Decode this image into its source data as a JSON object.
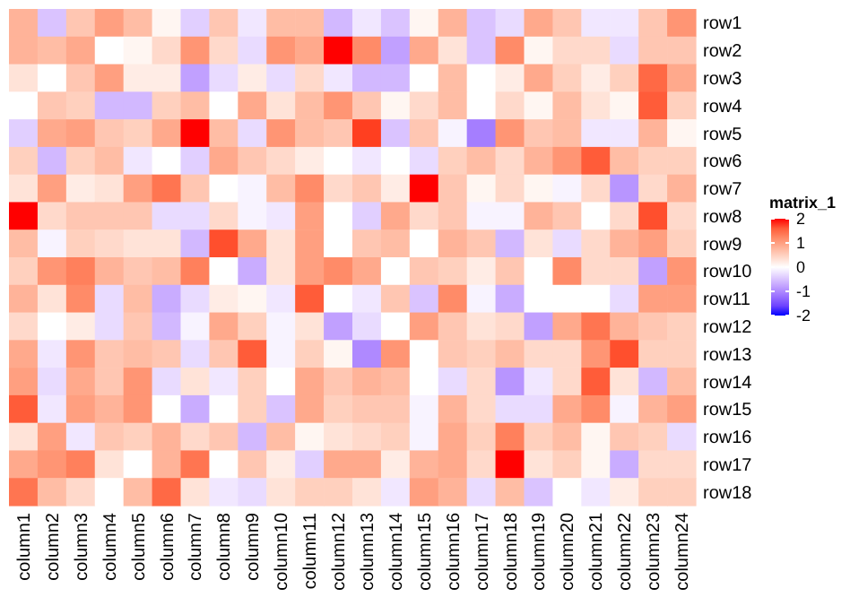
{
  "chart_data": {
    "type": "heatmap",
    "clabel": "matrix_1",
    "clim": [
      -2,
      2
    ],
    "cticks": [
      -2,
      -1,
      0,
      1,
      2
    ],
    "colors": [
      "#0000ff",
      "#ffffff",
      "#ff0000"
    ],
    "categories": [
      "column1",
      "column2",
      "column3",
      "column4",
      "column5",
      "column6",
      "column7",
      "column8",
      "column9",
      "column10",
      "column11",
      "column12",
      "column13",
      "column14",
      "column15",
      "column16",
      "column17",
      "column18",
      "column19",
      "column20",
      "column21",
      "column22",
      "column23",
      "column24"
    ],
    "y_categories": [
      "row1",
      "row2",
      "row3",
      "row4",
      "row5",
      "row6",
      "row7",
      "row8",
      "row9",
      "row10",
      "row11",
      "row12",
      "row13",
      "row14",
      "row15",
      "row16",
      "row17",
      "row18"
    ],
    "cells": [
      [
        0.8,
        -0.5,
        0.6,
        1.0,
        0.7,
        0.1,
        -0.4,
        0.6,
        -0.2,
        0.7,
        0.7,
        -0.6,
        -0.2,
        -0.5,
        0.1,
        0.8,
        -0.5,
        -0.3,
        0.9,
        0.6,
        -0.2,
        -0.2,
        0.6,
        1.1
      ],
      [
        0.8,
        0.7,
        0.9,
        0.0,
        0.1,
        0.4,
        1.1,
        0.4,
        -0.3,
        1.1,
        0.9,
        2.0,
        1.2,
        -0.8,
        0.9,
        0.3,
        -0.5,
        1.2,
        0.1,
        0.4,
        0.4,
        -0.3,
        0.6,
        0.6
      ],
      [
        0.3,
        0.0,
        0.6,
        1.0,
        0.2,
        0.2,
        -0.8,
        -0.3,
        0.2,
        -0.3,
        0.4,
        -0.2,
        -0.6,
        -0.6,
        0.0,
        0.7,
        0.0,
        0.2,
        0.9,
        0.5,
        0.2,
        0.5,
        1.5,
        0.9
      ],
      [
        0.0,
        0.6,
        0.5,
        -0.6,
        -0.6,
        0.5,
        0.7,
        0.0,
        0.9,
        0.3,
        0.7,
        1.1,
        0.6,
        0.1,
        0.4,
        0.7,
        0.0,
        0.4,
        0.1,
        0.7,
        0.3,
        0.1,
        1.6,
        0.5
      ],
      [
        -0.4,
        0.9,
        1.0,
        0.6,
        0.5,
        0.9,
        2.0,
        0.7,
        -0.3,
        1.1,
        0.7,
        0.6,
        1.8,
        -0.5,
        0.6,
        -0.1,
        -1.1,
        1.1,
        0.6,
        0.7,
        -0.2,
        -0.2,
        0.8,
        0.1
      ],
      [
        0.5,
        -0.6,
        0.5,
        0.7,
        -0.2,
        0.0,
        -0.4,
        0.9,
        0.6,
        0.4,
        0.2,
        0.0,
        -0.2,
        0.0,
        -0.3,
        0.5,
        0.7,
        0.4,
        0.8,
        1.1,
        1.6,
        0.7,
        0.5,
        0.5
      ],
      [
        0.3,
        1.0,
        0.2,
        0.3,
        1.0,
        1.4,
        0.6,
        0.0,
        -0.1,
        0.7,
        1.2,
        0.4,
        0.6,
        0.2,
        2.0,
        0.6,
        0.1,
        0.4,
        0.1,
        -0.1,
        0.4,
        -0.9,
        0.4,
        0.8
      ],
      [
        2.0,
        0.4,
        0.6,
        0.6,
        0.6,
        -0.3,
        -0.3,
        0.4,
        -0.1,
        -0.2,
        1.0,
        0.0,
        -0.4,
        0.9,
        0.4,
        0.6,
        -0.1,
        -0.1,
        0.8,
        0.6,
        0.0,
        0.4,
        1.7,
        0.4
      ],
      [
        0.7,
        -0.1,
        0.5,
        0.4,
        0.3,
        0.3,
        -0.6,
        1.7,
        0.9,
        0.3,
        1.0,
        0.0,
        0.6,
        0.7,
        0.0,
        0.8,
        0.6,
        -0.6,
        0.3,
        -0.3,
        0.4,
        0.8,
        1.0,
        0.5
      ],
      [
        0.5,
        1.1,
        1.3,
        0.8,
        0.6,
        0.7,
        1.3,
        0.0,
        -0.7,
        0.3,
        1.0,
        1.2,
        0.9,
        0.0,
        0.6,
        0.5,
        0.2,
        0.6,
        0.0,
        1.2,
        0.4,
        0.4,
        -0.8,
        1.1
      ],
      [
        0.8,
        0.3,
        1.2,
        -0.3,
        0.7,
        -0.7,
        -0.3,
        0.2,
        0.1,
        -0.2,
        1.6,
        0.0,
        -0.2,
        0.6,
        -0.5,
        1.2,
        -0.1,
        -0.7,
        0.0,
        0.0,
        0.0,
        -0.3,
        1.0,
        1.0
      ],
      [
        0.4,
        0.0,
        0.2,
        -0.3,
        0.6,
        -0.6,
        -0.1,
        0.9,
        0.5,
        -0.1,
        0.3,
        -0.8,
        -0.3,
        0.0,
        1.0,
        0.6,
        0.3,
        0.4,
        -0.8,
        0.9,
        1.4,
        0.8,
        0.6,
        0.5
      ],
      [
        0.9,
        -0.2,
        1.1,
        0.6,
        0.7,
        0.6,
        -0.3,
        0.6,
        1.6,
        -0.1,
        0.5,
        0.1,
        -1.0,
        1.1,
        0.0,
        0.6,
        0.5,
        0.7,
        0.4,
        0.4,
        1.1,
        1.7,
        0.5,
        0.5
      ],
      [
        1.0,
        -0.3,
        0.9,
        0.6,
        1.1,
        -0.3,
        0.3,
        -0.2,
        0.5,
        0.0,
        0.9,
        0.6,
        0.8,
        0.7,
        0.0,
        -0.3,
        0.4,
        -0.9,
        -0.2,
        0.4,
        1.6,
        0.3,
        -0.6,
        0.7
      ],
      [
        1.6,
        -0.2,
        1.0,
        0.8,
        1.1,
        0.0,
        -0.7,
        0.0,
        0.5,
        -0.5,
        0.9,
        0.5,
        0.6,
        0.6,
        -0.1,
        0.8,
        0.4,
        -0.3,
        -0.3,
        0.9,
        1.2,
        -0.1,
        0.8,
        1.0
      ],
      [
        0.3,
        1.0,
        -0.2,
        0.6,
        0.5,
        0.8,
        0.4,
        0.6,
        -0.6,
        0.7,
        0.1,
        0.3,
        0.4,
        0.5,
        -0.1,
        0.9,
        0.5,
        1.3,
        0.5,
        0.7,
        0.1,
        0.6,
        0.5,
        -0.3
      ],
      [
        0.9,
        1.1,
        1.3,
        0.3,
        0.0,
        0.8,
        1.4,
        0.0,
        0.6,
        0.2,
        -0.4,
        0.9,
        0.9,
        0.2,
        0.8,
        0.9,
        0.4,
        2.0,
        0.3,
        0.5,
        0.1,
        -0.7,
        0.4,
        0.4
      ],
      [
        1.4,
        0.7,
        0.4,
        0.0,
        0.7,
        1.5,
        0.3,
        -0.2,
        -0.3,
        0.3,
        0.5,
        0.5,
        0.3,
        -0.2,
        1.0,
        0.8,
        -0.3,
        0.7,
        -0.5,
        0.0,
        -0.2,
        0.2,
        0.5,
        0.5
      ]
    ]
  }
}
